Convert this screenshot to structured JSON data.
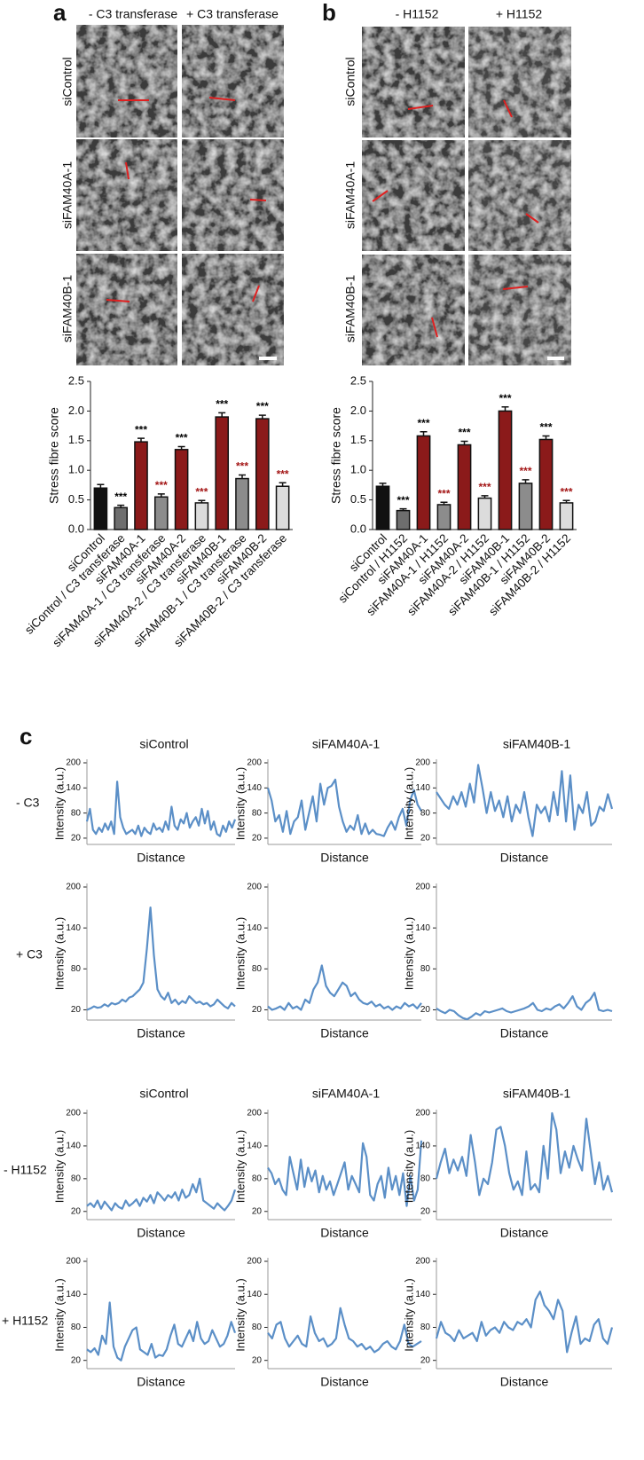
{
  "panel_a": {
    "label": "a",
    "column_headers": [
      "- C3 transferase",
      "+ C3 transferase"
    ],
    "row_labels": [
      "siControl",
      "siFAM40A-1",
      "siFAM40B-1"
    ]
  },
  "panel_b": {
    "label": "b",
    "column_headers": [
      "- H1152",
      "+ H1152"
    ],
    "row_labels": [
      "siControl",
      "siFAM40A-1",
      "siFAM40B-1"
    ]
  },
  "panel_c": {
    "label": "c",
    "header_groups": [
      [
        "siControl",
        "siFAM40A-1",
        "siFAM40B-1"
      ],
      [
        "siControl",
        "siFAM40A-1",
        "siFAM40B-1"
      ]
    ],
    "row_labels": [
      "- C3",
      "+ C3",
      "- H1152",
      "+ H1152"
    ]
  },
  "chart_data": [
    {
      "type": "bar",
      "ylabel": "Stress fibre score",
      "categories": [
        "siControl",
        "siControl / C3 transferase",
        "siFAM40A-1",
        "siFAM40A-1 / C3 transferase",
        "siFAM40A-2",
        "siFAM40A-2 / C3 transferase",
        "siFAM40B-1",
        "siFAM40B-1 / C3 transferase",
        "siFAM40B-2",
        "siFAM40B-2 / C3 transferase"
      ],
      "values": [
        0.7,
        0.37,
        1.48,
        0.55,
        1.35,
        0.45,
        1.9,
        0.86,
        1.87,
        0.73
      ],
      "errors": [
        0.06,
        0.04,
        0.06,
        0.05,
        0.05,
        0.04,
        0.07,
        0.06,
        0.06,
        0.06
      ],
      "colors": [
        "#111111",
        "#6e6e6e",
        "#8b1a1a",
        "#8c8c8c",
        "#8b1a1a",
        "#dcdcdc",
        "#8b1a1a",
        "#8c8c8c",
        "#8b1a1a",
        "#dcdcdc"
      ],
      "significance": [
        null,
        "***",
        "***",
        "***",
        "***",
        "***",
        "***",
        "***",
        "***",
        "***"
      ],
      "significance_colors": [
        null,
        "#000000",
        "#000000",
        "#a31515",
        "#000000",
        "#a31515",
        "#000000",
        "#a31515",
        "#000000",
        "#a31515"
      ],
      "ylim": [
        0,
        2.5
      ],
      "yticks": [
        {
          "value": 0,
          "label": "0.0"
        },
        0.5,
        {
          "value": 1,
          "label": "1.0"
        },
        1.5,
        {
          "value": 2,
          "label": "2.0"
        },
        2.5
      ]
    },
    {
      "type": "bar",
      "ylabel": "Stress fibre score",
      "categories": [
        "siControl",
        "siControl / H1152",
        "siFAM40A-1",
        "siFAM40A-1 / H1152",
        "siFAM40A-2",
        "siFAM40A-2 / H1152",
        "siFAM40B-1",
        "siFAM40B-1 / H1152",
        "siFAM40B-2",
        "siFAM40B-2 / H1152"
      ],
      "values": [
        0.73,
        0.32,
        1.58,
        0.42,
        1.43,
        0.53,
        2.0,
        0.78,
        1.52,
        0.45
      ],
      "errors": [
        0.05,
        0.03,
        0.07,
        0.04,
        0.06,
        0.04,
        0.07,
        0.06,
        0.06,
        0.04
      ],
      "colors": [
        "#111111",
        "#6e6e6e",
        "#8b1a1a",
        "#8c8c8c",
        "#8b1a1a",
        "#dcdcdc",
        "#8b1a1a",
        "#8c8c8c",
        "#8b1a1a",
        "#dcdcdc"
      ],
      "significance": [
        null,
        "***",
        "***",
        "***",
        "***",
        "***",
        "***",
        "***",
        "***",
        "***"
      ],
      "significance_colors": [
        null,
        "#000000",
        "#000000",
        "#a31515",
        "#000000",
        "#a31515",
        "#000000",
        "#a31515",
        "#000000",
        "#a31515"
      ],
      "ylim": [
        0,
        2.5
      ],
      "yticks": [
        {
          "value": 0,
          "label": "0.0"
        },
        0.5,
        {
          "value": 1,
          "label": "1.0"
        },
        1.5,
        {
          "value": 2,
          "label": "2.0"
        },
        2.5
      ]
    },
    {
      "type": "line",
      "ylabel": "Intensity (a.u.)",
      "xlabel": "Distance",
      "color": "#5b8fc7",
      "ylim": [
        5,
        200
      ],
      "yticks": [
        20,
        80,
        140,
        200
      ],
      "values": [
        60,
        90,
        40,
        30,
        45,
        35,
        55,
        40,
        60,
        30,
        155,
        70,
        45,
        30,
        35,
        40,
        30,
        50,
        25,
        45,
        35,
        30,
        55,
        40,
        45,
        35,
        60,
        40,
        95,
        50,
        40,
        65,
        55,
        80,
        45,
        60,
        70,
        50,
        90,
        55,
        85,
        40,
        60,
        30,
        25,
        50,
        35,
        60,
        45,
        65
      ]
    },
    {
      "type": "line",
      "ylabel": "Intensity (a.u.)",
      "xlabel": "Distance",
      "color": "#5b8fc7",
      "ylim": [
        5,
        200
      ],
      "yticks": [
        20,
        80,
        140,
        200
      ],
      "values": [
        140,
        110,
        60,
        75,
        35,
        85,
        30,
        60,
        70,
        110,
        40,
        80,
        120,
        60,
        150,
        100,
        140,
        145,
        160,
        95,
        60,
        35,
        50,
        40,
        75,
        30,
        55,
        30,
        40,
        30,
        28,
        25,
        45,
        60,
        40,
        70,
        90,
        50,
        110,
        135,
        100,
        85
      ]
    },
    {
      "type": "line",
      "ylabel": "Intensity (a.u.)",
      "xlabel": "Distance",
      "color": "#5b8fc7",
      "ylim": [
        5,
        200
      ],
      "yticks": [
        20,
        80,
        140,
        200
      ],
      "values": [
        130,
        115,
        100,
        90,
        120,
        100,
        130,
        95,
        150,
        105,
        195,
        140,
        80,
        130,
        85,
        110,
        70,
        120,
        60,
        100,
        80,
        130,
        70,
        25,
        100,
        80,
        95,
        60,
        130,
        75,
        180,
        60,
        170,
        40,
        100,
        80,
        130,
        50,
        60,
        95,
        85,
        125,
        90
      ]
    },
    {
      "type": "line",
      "ylabel": "Intensity (a.u.)",
      "xlabel": "Distance",
      "color": "#5b8fc7",
      "ylim": [
        5,
        200
      ],
      "yticks": [
        20,
        80,
        140,
        200
      ],
      "values": [
        20,
        22,
        25,
        23,
        24,
        28,
        25,
        30,
        28,
        30,
        35,
        32,
        38,
        40,
        45,
        50,
        60,
        110,
        170,
        100,
        50,
        40,
        35,
        45,
        30,
        35,
        28,
        33,
        30,
        40,
        35,
        30,
        32,
        28,
        30,
        25,
        28,
        35,
        30,
        25,
        22,
        30,
        25
      ]
    },
    {
      "type": "line",
      "ylabel": "Intensity (a.u.)",
      "xlabel": "Distance",
      "color": "#5b8fc7",
      "ylim": [
        5,
        200
      ],
      "yticks": [
        20,
        80,
        140,
        200
      ],
      "values": [
        25,
        20,
        22,
        25,
        20,
        30,
        22,
        25,
        20,
        35,
        30,
        50,
        60,
        85,
        55,
        45,
        40,
        50,
        60,
        55,
        40,
        45,
        35,
        30,
        28,
        32,
        25,
        28,
        22,
        25,
        20,
        25,
        22,
        30,
        25,
        28,
        22,
        30
      ]
    },
    {
      "type": "line",
      "ylabel": "Intensity (a.u.)",
      "xlabel": "Distance",
      "color": "#5b8fc7",
      "ylim": [
        5,
        200
      ],
      "yticks": [
        20,
        80,
        140,
        200
      ],
      "values": [
        22,
        18,
        15,
        20,
        18,
        12,
        8,
        6,
        10,
        15,
        12,
        18,
        16,
        18,
        20,
        22,
        18,
        16,
        18,
        20,
        22,
        25,
        30,
        20,
        18,
        22,
        20,
        25,
        28,
        22,
        30,
        40,
        25,
        20,
        30,
        35,
        45,
        20,
        18,
        20,
        18
      ]
    },
    {
      "type": "line",
      "ylabel": "Intensity (a.u.)",
      "xlabel": "Distance",
      "color": "#5b8fc7",
      "ylim": [
        5,
        200
      ],
      "yticks": [
        20,
        80,
        140,
        200
      ],
      "values": [
        30,
        35,
        28,
        40,
        25,
        38,
        30,
        22,
        35,
        28,
        25,
        40,
        30,
        35,
        42,
        30,
        45,
        38,
        50,
        35,
        55,
        48,
        40,
        50,
        45,
        55,
        40,
        60,
        45,
        50,
        70,
        55,
        80,
        40,
        35,
        30,
        25,
        35,
        28,
        22,
        30,
        40,
        60
      ]
    },
    {
      "type": "line",
      "ylabel": "Intensity (a.u.)",
      "xlabel": "Distance",
      "color": "#5b8fc7",
      "ylim": [
        5,
        200
      ],
      "yticks": [
        20,
        80,
        140,
        200
      ],
      "values": [
        100,
        90,
        70,
        80,
        60,
        50,
        120,
        90,
        60,
        115,
        65,
        100,
        75,
        95,
        55,
        85,
        60,
        75,
        50,
        70,
        90,
        110,
        60,
        85,
        70,
        55,
        145,
        120,
        50,
        40,
        70,
        85,
        45,
        100,
        60,
        85,
        50,
        90,
        30,
        85,
        40,
        60,
        150
      ]
    },
    {
      "type": "line",
      "ylabel": "Intensity (a.u.)",
      "xlabel": "Distance",
      "color": "#5b8fc7",
      "ylim": [
        5,
        200
      ],
      "yticks": [
        20,
        80,
        140,
        200
      ],
      "values": [
        80,
        110,
        135,
        90,
        115,
        95,
        120,
        85,
        160,
        110,
        50,
        80,
        70,
        110,
        170,
        175,
        140,
        90,
        60,
        75,
        50,
        130,
        60,
        70,
        55,
        140,
        80,
        200,
        170,
        90,
        130,
        100,
        140,
        115,
        95,
        190,
        130,
        70,
        110,
        60,
        85,
        55
      ]
    },
    {
      "type": "line",
      "ylabel": "Intensity (a.u.)",
      "xlabel": "Distance",
      "color": "#5b8fc7",
      "ylim": [
        5,
        200
      ],
      "yticks": [
        20,
        80,
        140,
        200
      ],
      "values": [
        40,
        35,
        42,
        30,
        65,
        50,
        125,
        45,
        25,
        20,
        45,
        60,
        75,
        80,
        40,
        35,
        30,
        50,
        25,
        30,
        28,
        40,
        65,
        85,
        50,
        45,
        60,
        75,
        55,
        90,
        60,
        50,
        55,
        75,
        60,
        45,
        50,
        65,
        90,
        70
      ]
    },
    {
      "type": "line",
      "ylabel": "Intensity (a.u.)",
      "xlabel": "Distance",
      "color": "#5b8fc7",
      "ylim": [
        5,
        200
      ],
      "yticks": [
        20,
        80,
        140,
        200
      ],
      "values": [
        70,
        60,
        85,
        90,
        60,
        45,
        55,
        65,
        50,
        45,
        100,
        70,
        55,
        60,
        45,
        50,
        60,
        115,
        85,
        60,
        55,
        45,
        50,
        40,
        45,
        35,
        40,
        50,
        55,
        45,
        40,
        55,
        85,
        50,
        45,
        50,
        55
      ]
    },
    {
      "type": "line",
      "ylabel": "Intensity (a.u.)",
      "xlabel": "Distance",
      "color": "#5b8fc7",
      "ylim": [
        5,
        200
      ],
      "yticks": [
        20,
        80,
        140,
        200
      ],
      "values": [
        60,
        90,
        70,
        65,
        55,
        75,
        60,
        65,
        70,
        55,
        90,
        65,
        75,
        80,
        70,
        90,
        80,
        75,
        90,
        85,
        95,
        80,
        130,
        145,
        120,
        110,
        95,
        130,
        110,
        35,
        70,
        100,
        50,
        60,
        55,
        85,
        95,
        60,
        50,
        80
      ]
    }
  ]
}
